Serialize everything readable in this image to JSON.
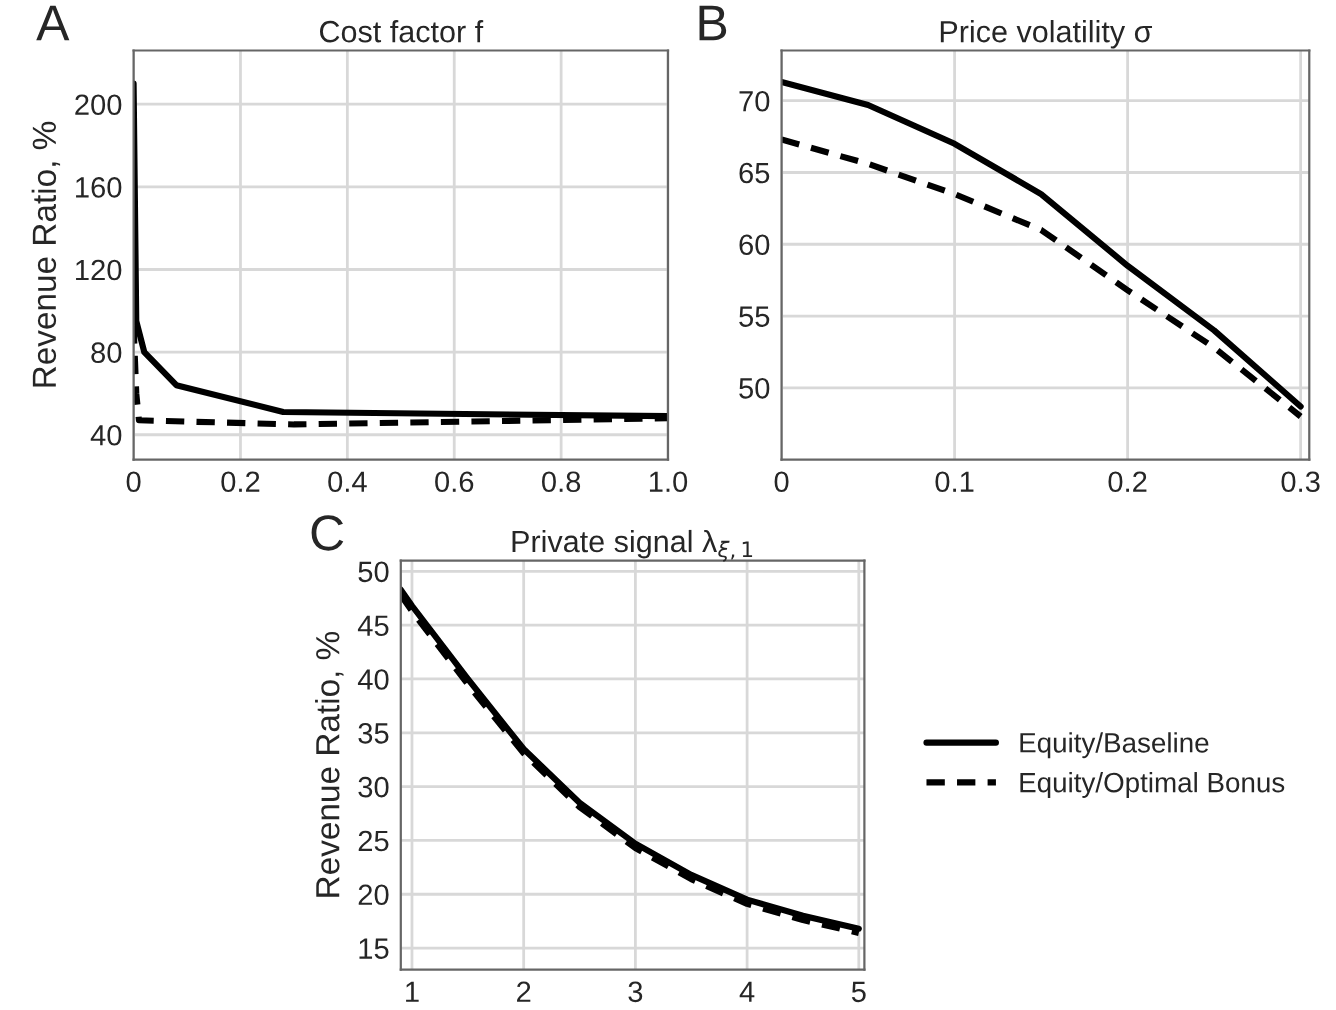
{
  "chart_data": [
    {
      "type": "line",
      "title": "Cost factor f",
      "ylabel": "Revenue Ratio, %",
      "annotations": [
        "A"
      ],
      "xlim": [
        0,
        1.0
      ],
      "ylim": [
        28,
        226
      ],
      "xticks": [
        0,
        0.2,
        0.4,
        0.6,
        0.8,
        {
          "value": 1.0,
          "label": "1.0"
        }
      ],
      "yticks": [
        40,
        80,
        120,
        160,
        200
      ],
      "grid": true,
      "legend": false,
      "series": [
        {
          "color": "#000000",
          "line_style": "solid",
          "x": [
            0,
            0.005,
            0.02,
            0.08,
            0.28,
            1.0
          ],
          "values": [
            210,
            95,
            80,
            64,
            51,
            49
          ]
        },
        {
          "color": "#000000",
          "line_style": "dashed",
          "x": [
            0,
            0.005,
            0.01,
            0.3,
            1.0
          ],
          "values": [
            93,
            60,
            47,
            45,
            48
          ]
        }
      ]
    },
    {
      "type": "line",
      "title": "Price volatility σ",
      "annotations": [
        "B"
      ],
      "xlim": [
        0,
        0.305
      ],
      "ylim": [
        45,
        73.5
      ],
      "xticks": [
        0,
        0.1,
        0.2,
        0.3
      ],
      "yticks": [
        50,
        55,
        60,
        65,
        70
      ],
      "grid": true,
      "legend": false,
      "series": [
        {
          "color": "#000000",
          "line_style": "solid",
          "x": [
            0,
            0.05,
            0.1,
            0.15,
            0.2,
            0.25,
            0.3
          ],
          "values": [
            71.3,
            69.7,
            67,
            63.5,
            58.5,
            54,
            48.7
          ]
        },
        {
          "color": "#000000",
          "line_style": "dashed",
          "x": [
            0,
            0.05,
            0.1,
            0.15,
            0.2,
            0.25,
            0.3
          ],
          "values": [
            67.3,
            65.6,
            63.5,
            61,
            56.8,
            52.8,
            48
          ]
        }
      ]
    },
    {
      "type": "line",
      "title": "Private signal λ$_{ξ,1}$",
      "ylabel": "Revenue Ratio, %",
      "annotations": [
        "C"
      ],
      "xlim": [
        0.9,
        5.05
      ],
      "ylim": [
        13,
        51
      ],
      "xticks": [
        1,
        2,
        3,
        4,
        5
      ],
      "yticks": [
        15,
        20,
        25,
        30,
        35,
        40,
        45,
        50
      ],
      "grid": true,
      "legend": "right",
      "series": [
        {
          "name": "Equity/Baseline",
          "color": "#000000",
          "line_style": "solid",
          "x": [
            0.9,
            1,
            1.5,
            2,
            2.5,
            3,
            3.5,
            4,
            4.5,
            5
          ],
          "values": [
            48.3,
            46.8,
            40,
            33.5,
            28.5,
            24.7,
            21.8,
            19.5,
            18,
            16.8
          ]
        },
        {
          "name": "Equity/Optimal Bonus",
          "color": "#000000",
          "line_style": "dashed",
          "x": [
            0.9,
            1,
            1.5,
            2,
            2.5,
            3,
            3.5,
            4,
            4.5,
            5
          ],
          "values": [
            47.8,
            46.3,
            39.5,
            33.1,
            28.1,
            24.3,
            21.4,
            19.1,
            17.6,
            16.4
          ]
        }
      ]
    }
  ]
}
